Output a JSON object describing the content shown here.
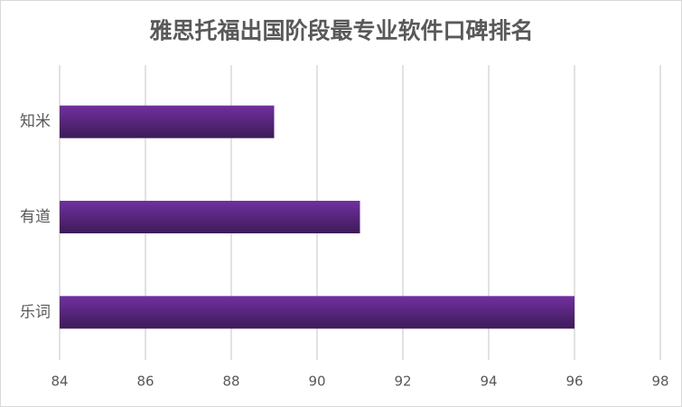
{
  "chart_data": {
    "type": "bar",
    "orientation": "horizontal",
    "title": "雅思托福出国阶段最专业软件口碑排名",
    "categories": [
      "知米",
      "有道",
      "乐词"
    ],
    "values": [
      89,
      91,
      96
    ],
    "color": "#7030a0",
    "xlim": [
      84,
      98
    ],
    "xticks": [
      84,
      86,
      88,
      90,
      92,
      94,
      96,
      98
    ],
    "grid": true
  }
}
